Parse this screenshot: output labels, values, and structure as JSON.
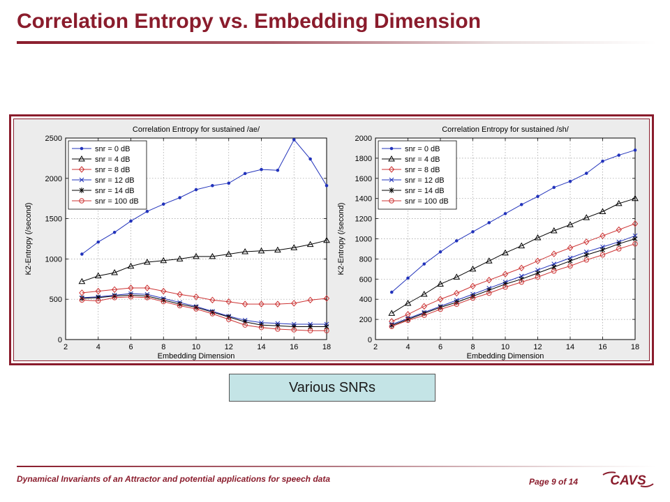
{
  "slide": {
    "title": "Correlation Entropy vs. Embedding Dimension",
    "callout": "Various SNRs",
    "footer_left": "Dynamical Invariants of an Attractor and potential applications for speech data",
    "footer_page": "Page 9 of 14",
    "logo_text": "CAVS",
    "accent_color": "#8a1c2c"
  },
  "chart_data": [
    {
      "type": "line",
      "title": "Correlation Entropy for sustained /ae/",
      "xlabel": "Embedding Dimension",
      "ylabel": "K2-Entropy (/second)",
      "xlim": [
        2,
        18
      ],
      "ylim": [
        0,
        2500
      ],
      "xticks": [
        2,
        4,
        6,
        8,
        10,
        12,
        14,
        16,
        18
      ],
      "yticks": [
        0,
        500,
        1000,
        1500,
        2000,
        2500
      ],
      "grid": true,
      "legend_position": "top-left",
      "x": [
        3,
        4,
        5,
        6,
        7,
        8,
        9,
        10,
        11,
        12,
        13,
        14,
        15,
        16,
        17,
        18
      ],
      "series": [
        {
          "name": "snr = 0 dB",
          "color": "#2233bb",
          "marker": "dot",
          "values": [
            1060,
            1210,
            1330,
            1470,
            1590,
            1680,
            1760,
            1860,
            1910,
            1940,
            2060,
            2110,
            2100,
            2480,
            2240,
            1910
          ]
        },
        {
          "name": "snr = 4 dB",
          "color": "#000000",
          "marker": "triangle",
          "values": [
            720,
            790,
            830,
            910,
            960,
            980,
            1000,
            1030,
            1030,
            1060,
            1090,
            1100,
            1110,
            1140,
            1180,
            1230
          ]
        },
        {
          "name": "snr = 8 dB",
          "color": "#cc3333",
          "marker": "diamond",
          "values": [
            580,
            600,
            620,
            640,
            640,
            600,
            560,
            530,
            490,
            470,
            440,
            440,
            440,
            450,
            490,
            510
          ]
        },
        {
          "name": "snr = 12 dB",
          "color": "#2233bb",
          "marker": "x",
          "values": [
            520,
            530,
            550,
            570,
            560,
            510,
            460,
            410,
            350,
            290,
            240,
            210,
            200,
            190,
            190,
            190
          ]
        },
        {
          "name": "snr = 14 dB",
          "color": "#000000",
          "marker": "star",
          "values": [
            510,
            520,
            540,
            550,
            540,
            490,
            440,
            400,
            340,
            280,
            220,
            180,
            170,
            160,
            160,
            160
          ]
        },
        {
          "name": "snr = 100 dB",
          "color": "#cc3333",
          "marker": "circle",
          "values": [
            490,
            480,
            520,
            530,
            520,
            470,
            420,
            380,
            320,
            250,
            180,
            150,
            130,
            120,
            110,
            110
          ]
        }
      ]
    },
    {
      "type": "line",
      "title": "Correlation Entropy for sustained /sh/",
      "xlabel": "Embedding Dimension",
      "ylabel": "K2-Entropy (/second)",
      "xlim": [
        2,
        18
      ],
      "ylim": [
        0,
        2000
      ],
      "xticks": [
        2,
        4,
        6,
        8,
        10,
        12,
        14,
        16,
        18
      ],
      "yticks": [
        0,
        200,
        400,
        600,
        800,
        1000,
        1200,
        1400,
        1600,
        1800,
        2000
      ],
      "grid": true,
      "legend_position": "top-left",
      "x": [
        3,
        4,
        5,
        6,
        7,
        8,
        9,
        10,
        11,
        12,
        13,
        14,
        15,
        16,
        17,
        18
      ],
      "series": [
        {
          "name": "snr = 0 dB",
          "color": "#2233bb",
          "marker": "dot",
          "values": [
            470,
            610,
            750,
            870,
            980,
            1070,
            1160,
            1250,
            1340,
            1420,
            1510,
            1570,
            1650,
            1770,
            1830,
            1880
          ]
        },
        {
          "name": "snr = 4 dB",
          "color": "#000000",
          "marker": "triangle",
          "values": [
            260,
            360,
            450,
            550,
            620,
            700,
            780,
            860,
            930,
            1010,
            1080,
            1140,
            1210,
            1270,
            1350,
            1400
          ]
        },
        {
          "name": "snr = 8 dB",
          "color": "#cc3333",
          "marker": "diamond",
          "values": [
            180,
            250,
            330,
            400,
            460,
            530,
            590,
            650,
            710,
            780,
            850,
            910,
            970,
            1030,
            1090,
            1150
          ]
        },
        {
          "name": "snr = 12 dB",
          "color": "#2233bb",
          "marker": "x",
          "values": [
            150,
            210,
            270,
            330,
            390,
            450,
            510,
            570,
            630,
            690,
            750,
            810,
            870,
            920,
            970,
            1030
          ]
        },
        {
          "name": "snr = 14 dB",
          "color": "#000000",
          "marker": "star",
          "values": [
            140,
            200,
            260,
            320,
            370,
            430,
            490,
            550,
            600,
            660,
            720,
            780,
            840,
            890,
            950,
            1000
          ]
        },
        {
          "name": "snr = 100 dB",
          "color": "#cc3333",
          "marker": "circle",
          "values": [
            130,
            190,
            240,
            300,
            350,
            410,
            460,
            520,
            570,
            620,
            680,
            730,
            790,
            840,
            900,
            950
          ]
        }
      ]
    }
  ]
}
